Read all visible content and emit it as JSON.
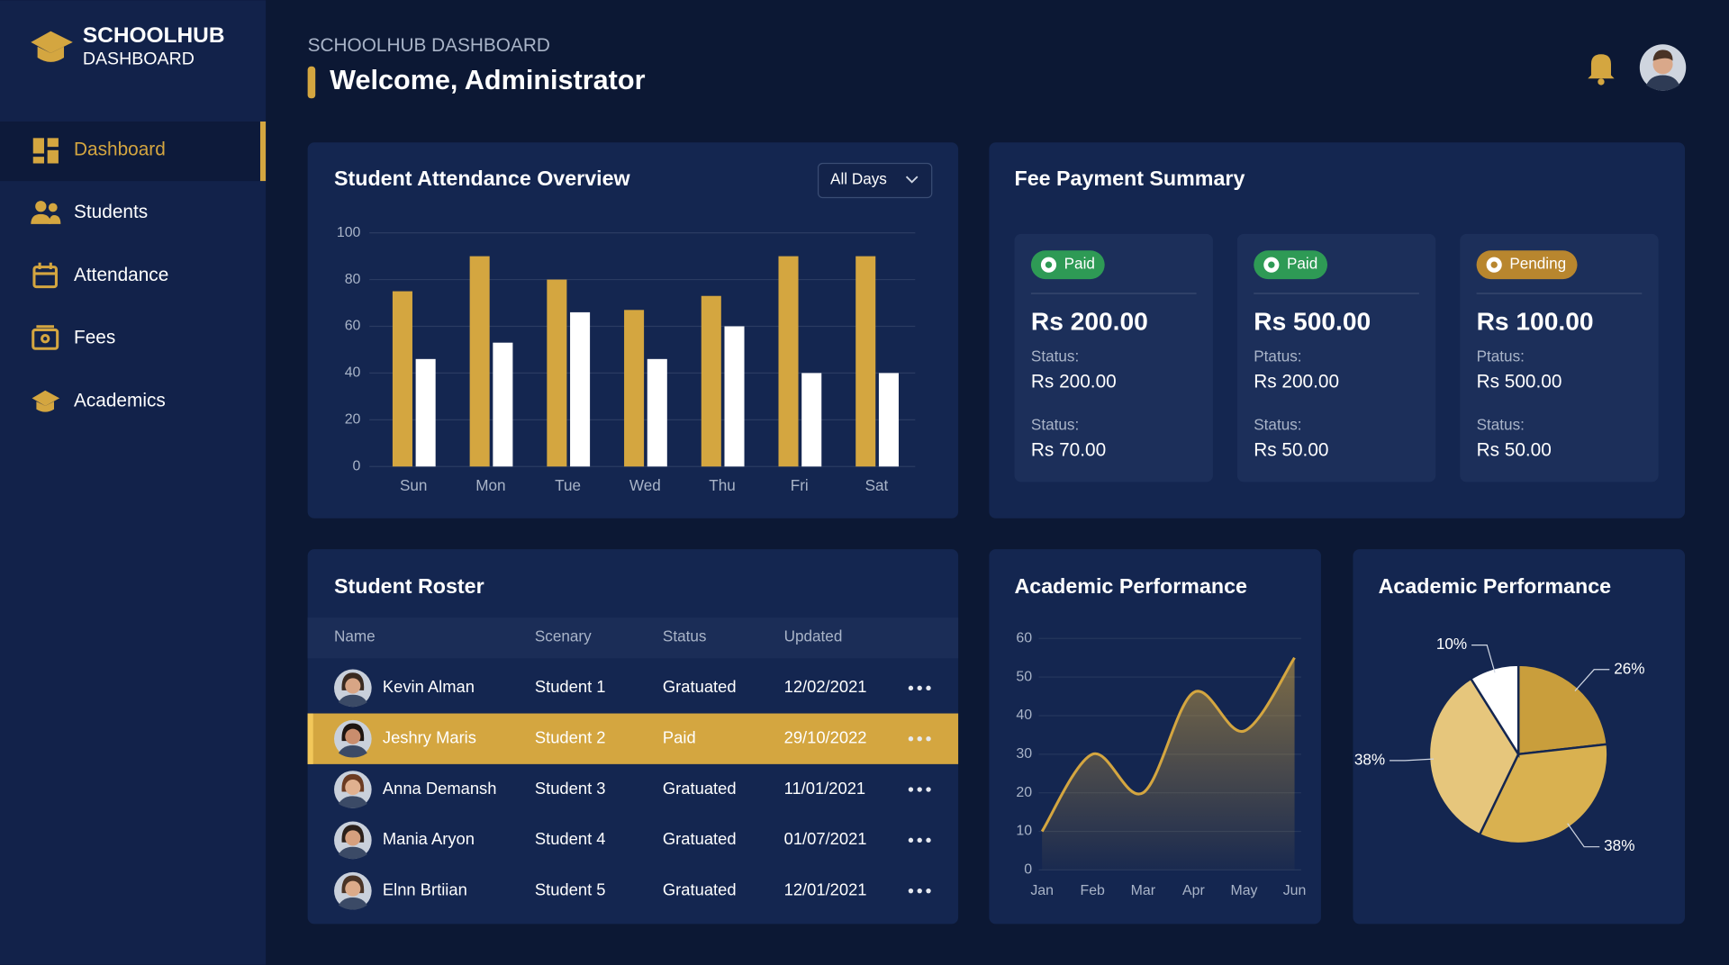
{
  "sidebar": {
    "brand_title": "SCHOOLHUB",
    "brand_subtitle": "DASHBOARD",
    "nav": [
      "Dashboard",
      "Students",
      "Attendance",
      "Fees",
      "Academics"
    ]
  },
  "header": {
    "subtitle": "SCHOOLHUB DASHBOARD",
    "title": "Welcome, Administrator"
  },
  "chart_data": [
    {
      "type": "bar",
      "title": "Student Attendance Overview",
      "filter": "All Days",
      "categories": [
        "Sun",
        "Mon",
        "Tue",
        "Wed",
        "Thu",
        "Fri",
        "Sat"
      ],
      "series": [
        {
          "color": "#d4a640",
          "values": [
            75,
            90,
            80,
            67,
            73,
            90,
            90
          ]
        },
        {
          "color": "#ffffff",
          "values": [
            46,
            53,
            66,
            46,
            60,
            40,
            40
          ]
        }
      ],
      "ylim": [
        0,
        100
      ],
      "yticks": [
        0,
        20,
        40,
        60,
        80,
        100
      ],
      "grid": true
    },
    {
      "type": "area",
      "title": "Academic Performance",
      "categories": [
        "Jan",
        "Feb",
        "Mar",
        "Apr",
        "May",
        "Jun"
      ],
      "values": [
        10,
        30,
        20,
        46,
        36,
        55
      ],
      "color": "#d4a640",
      "ylim": [
        0,
        60
      ],
      "yticks": [
        0,
        10,
        20,
        30,
        40,
        50,
        60
      ],
      "grid": true
    },
    {
      "type": "pie",
      "title": "Academic Performance",
      "values": [
        26,
        38,
        38,
        10
      ],
      "value_labels": [
        "26%",
        "38%",
        "38%",
        "10%"
      ],
      "colors": [
        "#c99e3c",
        "#d9b150",
        "#e6c67c",
        "#ffffff"
      ]
    }
  ],
  "fee_summary": {
    "title": "Fee Payment Summary",
    "cards": [
      {
        "status": "Paid",
        "badge_color": "#2e9a55",
        "amount": "Rs 200.00",
        "lines": [
          [
            "Status:",
            "Rs 200.00"
          ],
          [
            "Status:",
            "Rs 70.00"
          ]
        ]
      },
      {
        "status": "Paid",
        "badge_color": "#2e9a55",
        "amount": "Rs 500.00",
        "lines": [
          [
            "Ptatus:",
            "Rs 200.00"
          ],
          [
            "Status:",
            "Rs 50.00"
          ]
        ]
      },
      {
        "status": "Pending",
        "badge_color": "#b8862e",
        "amount": "Rs 100.00",
        "lines": [
          [
            "Ptatus:",
            "Rs 500.00"
          ],
          [
            "Status:",
            "Rs 50.00"
          ]
        ]
      }
    ]
  },
  "roster": {
    "title": "Student Roster",
    "columns": [
      "Name",
      "Scenary",
      "Status",
      "Updated"
    ],
    "rows": [
      [
        "Kevin Alman",
        "Student 1",
        "Gratuated",
        "12/02/2021"
      ],
      [
        "Jeshry Maris",
        "Student 2",
        "Paid",
        "29/10/2022"
      ],
      [
        "Anna Demansh",
        "Student 3",
        "Gratuated",
        "11/01/2021"
      ],
      [
        "Mania Aryon",
        "Student 4",
        "Gratuated",
        "01/07/2021"
      ],
      [
        "Elnn Brtiian",
        "Student 5",
        "Gratuated",
        "12/01/2021"
      ]
    ],
    "selected_row": 1
  }
}
